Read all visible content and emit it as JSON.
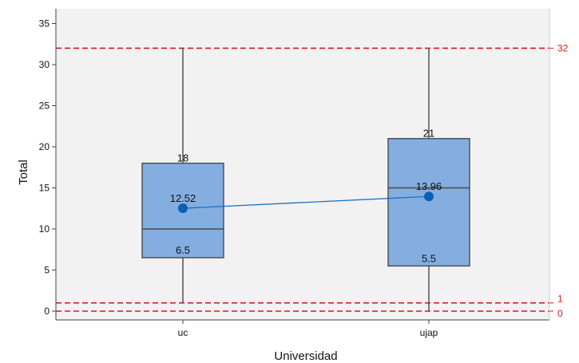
{
  "chart_data": {
    "type": "boxplot",
    "title": "",
    "xlabel": "Universidad",
    "ylabel": "Total",
    "ylim": [
      -2,
      36
    ],
    "yticks": [
      0,
      5,
      10,
      15,
      20,
      25,
      30,
      35
    ],
    "categories": [
      "uc",
      "ujap"
    ],
    "boxes": [
      {
        "category": "uc",
        "min": 1,
        "q1": 6.5,
        "median": 10,
        "q3": 18,
        "max": 32,
        "mean": 12.52,
        "q1_label": "6.5",
        "q3_label": "18",
        "mean_label": "12.52"
      },
      {
        "category": "ujap",
        "min": 0,
        "q1": 5.5,
        "median": 15,
        "q3": 21,
        "max": 32,
        "mean": 13.96,
        "q1_label": "5.5",
        "q3_label": "21",
        "mean_label": "13.96"
      }
    ],
    "reference_lines": [
      {
        "value": 32,
        "label": "32"
      },
      {
        "value": 1,
        "label": "1"
      },
      {
        "value": 0,
        "label": "0"
      }
    ],
    "mean_connect_line": true,
    "grid": false,
    "colors": {
      "plot_background": "#f2f2f2",
      "box_fill": "#84aee0",
      "box_stroke": "#4a4a4a",
      "mean_point": "#0b5fb7",
      "mean_line": "#1f6fc4",
      "reference_line": "#d7191c"
    }
  }
}
